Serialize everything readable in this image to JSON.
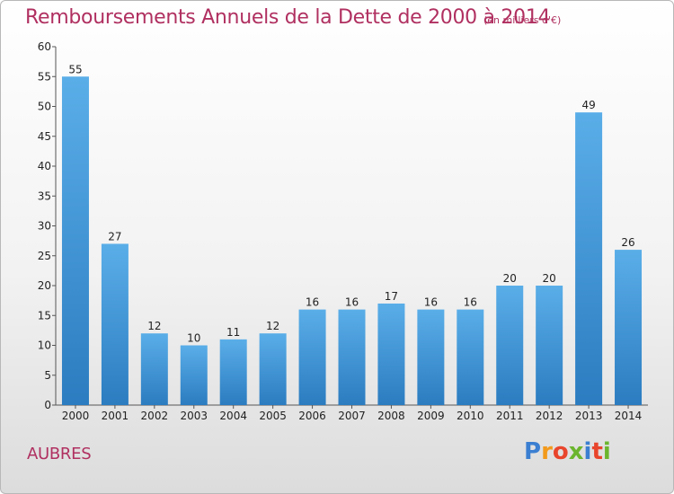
{
  "chart_data": {
    "type": "bar",
    "title": "Remboursements Annuels de la Dette de 2000 à 2014",
    "unit_note": "(en milliers d'€)",
    "categories": [
      "2000",
      "2001",
      "2002",
      "2003",
      "2004",
      "2005",
      "2006",
      "2007",
      "2008",
      "2009",
      "2010",
      "2011",
      "2012",
      "2013",
      "2014"
    ],
    "values": [
      55,
      27,
      12,
      10,
      11,
      12,
      16,
      16,
      17,
      16,
      16,
      20,
      20,
      49,
      26
    ],
    "ylim": [
      0,
      60
    ],
    "yticks": [
      0,
      5,
      10,
      15,
      20,
      25,
      30,
      35,
      40,
      45,
      50,
      55,
      60
    ],
    "grid": false,
    "bar_color_top": "#5aaee8",
    "bar_color_bottom": "#2b7cc0"
  },
  "footer": {
    "town": "AUBRES",
    "brand": "Proxiti"
  },
  "colors": {
    "title": "#b03060",
    "brand_letters": [
      "#3a7fd1",
      "#f39a1c",
      "#e8452c",
      "#6bb52e",
      "#3a7fd1",
      "#e8452c",
      "#6bb52e"
    ]
  }
}
